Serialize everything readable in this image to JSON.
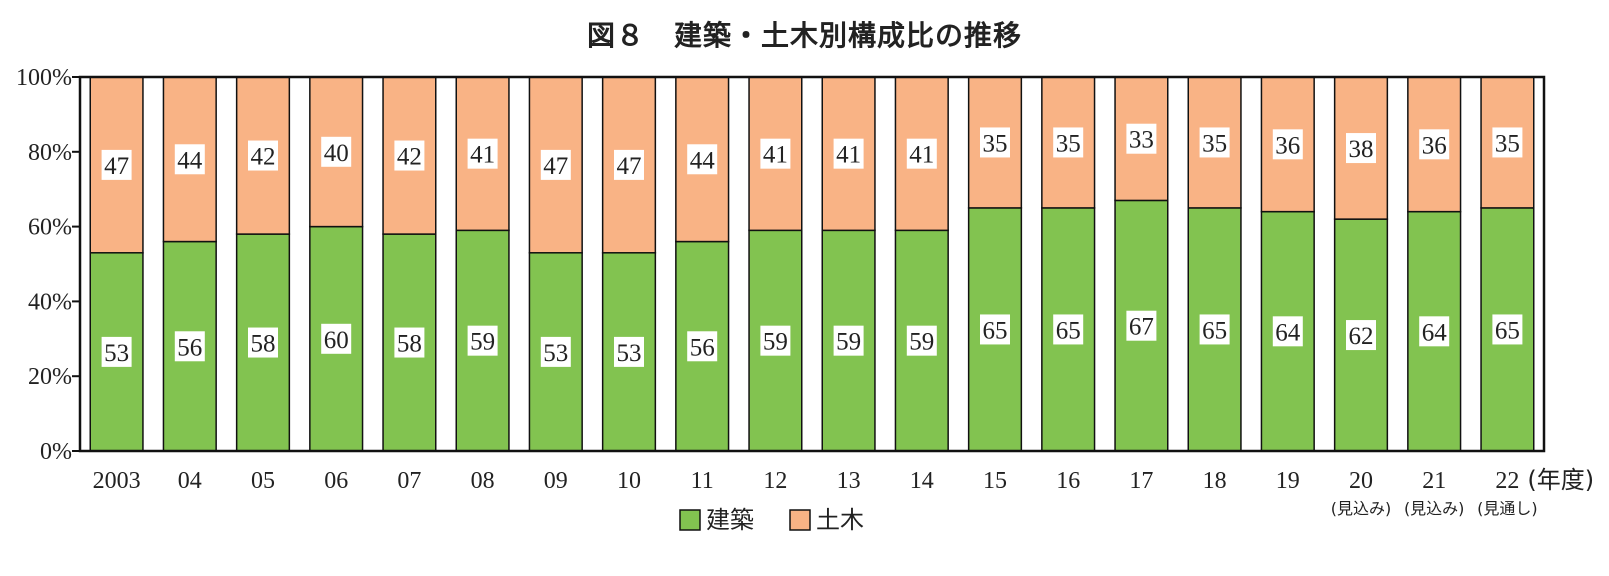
{
  "title": "図８　建築・土木別構成比の推移",
  "chart_data": {
    "type": "bar",
    "stacked": true,
    "percent": true,
    "categories": [
      "2003",
      "04",
      "05",
      "06",
      "07",
      "08",
      "09",
      "10",
      "11",
      "12",
      "13",
      "14",
      "15",
      "16",
      "17",
      "18",
      "19",
      "20",
      "21",
      "22"
    ],
    "category_notes": [
      "",
      "",
      "",
      "",
      "",
      "",
      "",
      "",
      "",
      "",
      "",
      "",
      "",
      "",
      "",
      "",
      "",
      "(見込み)",
      "(見込み)",
      "(見通し)"
    ],
    "x_unit": "(年度)",
    "y_ticks": [
      "0%",
      "20%",
      "40%",
      "60%",
      "80%",
      "100%"
    ],
    "ylim": [
      0,
      100
    ],
    "series": [
      {
        "name": "建築",
        "color": "#82c350",
        "values": [
          53,
          56,
          58,
          60,
          58,
          59,
          53,
          53,
          56,
          59,
          59,
          59,
          65,
          65,
          67,
          65,
          64,
          62,
          64,
          65
        ]
      },
      {
        "name": "土木",
        "color": "#f9b385",
        "values": [
          47,
          44,
          42,
          40,
          42,
          41,
          47,
          47,
          44,
          41,
          41,
          41,
          35,
          35,
          33,
          35,
          36,
          38,
          36,
          35
        ]
      }
    ],
    "legend": "bottom-center",
    "grid": false
  }
}
